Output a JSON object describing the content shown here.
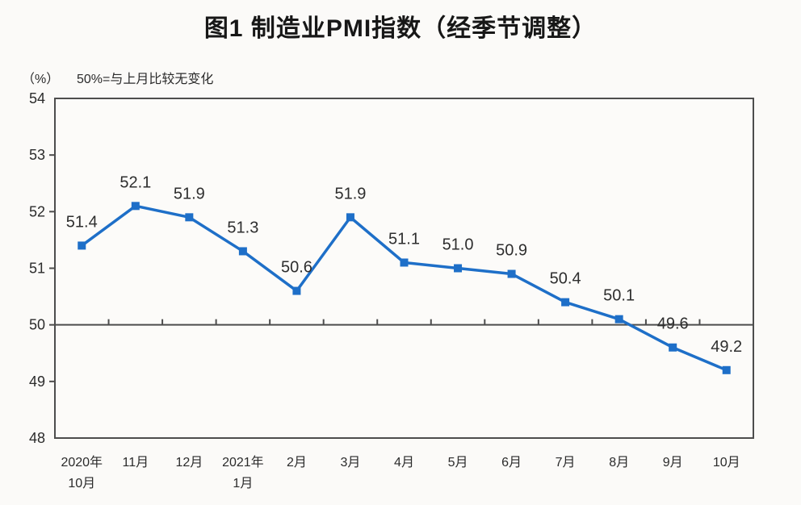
{
  "title": "图1 制造业PMI指数（经季节调整）",
  "y_unit_label": "（%）",
  "note": "50%=与上月比较无变化",
  "colors": {
    "line": "#1e6fc8",
    "axis": "#4d4d4d",
    "data_label": "#2e2e2e",
    "tick_label": "#2b2b2b",
    "background": "#fbfaf8"
  },
  "chart_data": {
    "type": "line",
    "categories": [
      [
        "2020年",
        "10月"
      ],
      [
        "11月"
      ],
      [
        "12月"
      ],
      [
        "2021年",
        "1月"
      ],
      [
        "2月"
      ],
      [
        "3月"
      ],
      [
        "4月"
      ],
      [
        "5月"
      ],
      [
        "6月"
      ],
      [
        "7月"
      ],
      [
        "8月"
      ],
      [
        "9月"
      ],
      [
        "10月"
      ]
    ],
    "values": [
      51.4,
      52.1,
      51.9,
      51.3,
      50.6,
      51.9,
      51.1,
      51.0,
      50.9,
      50.4,
      50.1,
      49.6,
      49.2
    ],
    "data_labels": [
      "51.4",
      "52.1",
      "51.9",
      "51.3",
      "50.6",
      "51.9",
      "51.1",
      "51.0",
      "50.9",
      "50.4",
      "50.1",
      "49.6",
      "49.2"
    ],
    "ylim": [
      48,
      54
    ],
    "y_ticks": [
      48,
      49,
      50,
      51,
      52,
      53,
      54
    ],
    "reference_line": 50,
    "marker": "square",
    "grid": false,
    "legend": false,
    "title": "图1 制造业PMI指数（经季节调整）",
    "ylabel": "（%）"
  }
}
